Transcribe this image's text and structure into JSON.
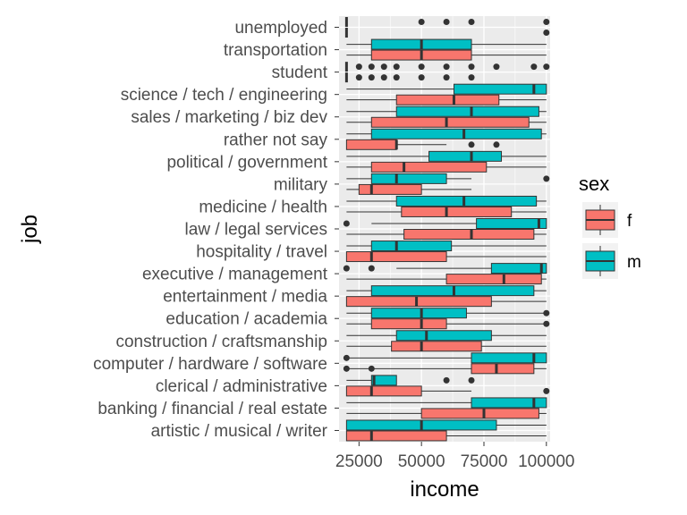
{
  "chart_data": {
    "type": "boxplot",
    "orientation": "horizontal",
    "xlabel": "income",
    "ylabel": "job",
    "xlim": [
      17000,
      101500
    ],
    "xticks": [
      25000,
      50000,
      75000,
      100000
    ],
    "xtick_labels": [
      "25000",
      "50000",
      "75000",
      "100000"
    ],
    "grid": true,
    "panel_background": "#ebebeb",
    "grid_color": "#ffffff",
    "legend": {
      "title": "sex",
      "placement": "right",
      "entries": [
        {
          "name": "f",
          "color": "#f8766d"
        },
        {
          "name": "m",
          "color": "#00bfc4"
        }
      ]
    },
    "series_colors": {
      "f": "#f8766d",
      "m": "#00bfc4"
    },
    "categories": [
      "artistic / musical / writer",
      "banking / financial / real estate",
      "clerical / administrative",
      "computer / hardware / software",
      "construction / craftsmanship",
      "education / academia",
      "entertainment / media",
      "executive / management",
      "hospitality / travel",
      "law / legal services",
      "medicine / health",
      "military",
      "political / government",
      "rather not say",
      "sales / marketing / biz dev",
      "science / tech / engineering",
      "student",
      "transportation",
      "unemployed"
    ],
    "boxes": [
      {
        "job": "artistic / musical / writer",
        "sex": "f",
        "min": 20000,
        "q1": 20000,
        "median": 30000,
        "q3": 60000,
        "max": 100000,
        "outliers": []
      },
      {
        "job": "artistic / musical / writer",
        "sex": "m",
        "min": 20000,
        "q1": 20000,
        "median": 50000,
        "q3": 80000,
        "max": 100000,
        "outliers": []
      },
      {
        "job": "banking / financial / real estate",
        "sex": "f",
        "min": 20000,
        "q1": 50000,
        "median": 75000,
        "q3": 97000,
        "max": 100000,
        "outliers": []
      },
      {
        "job": "banking / financial / real estate",
        "sex": "m",
        "min": 20000,
        "q1": 70000,
        "median": 95000,
        "q3": 100000,
        "max": 100000,
        "outliers": []
      },
      {
        "job": "clerical / administrative",
        "sex": "f",
        "min": 20000,
        "q1": 20000,
        "median": 30000,
        "q3": 50000,
        "max": 70000,
        "outliers": [
          100000
        ]
      },
      {
        "job": "clerical / administrative",
        "sex": "m",
        "min": 20000,
        "q1": 30000,
        "median": 31000,
        "q3": 40000,
        "max": 40000,
        "outliers": [
          60000,
          70000
        ]
      },
      {
        "job": "computer / hardware / software",
        "sex": "f",
        "min": 20000,
        "q1": 70000,
        "median": 80000,
        "q3": 95000,
        "max": 100000,
        "outliers": [
          20000,
          30000
        ]
      },
      {
        "job": "computer / hardware / software",
        "sex": "m",
        "min": 20000,
        "q1": 70000,
        "median": 95000,
        "q3": 100000,
        "max": 100000,
        "outliers": [
          20000
        ]
      },
      {
        "job": "construction / craftsmanship",
        "sex": "f",
        "min": 20000,
        "q1": 38000,
        "median": 50000,
        "q3": 74000,
        "max": 100000,
        "outliers": []
      },
      {
        "job": "construction / craftsmanship",
        "sex": "m",
        "min": 20000,
        "q1": 40000,
        "median": 52000,
        "q3": 78000,
        "max": 100000,
        "outliers": []
      },
      {
        "job": "education / academia",
        "sex": "f",
        "min": 20000,
        "q1": 30000,
        "median": 50000,
        "q3": 60000,
        "max": 100000,
        "outliers": [
          100000
        ]
      },
      {
        "job": "education / academia",
        "sex": "m",
        "min": 20000,
        "q1": 30000,
        "median": 50000,
        "q3": 68000,
        "max": 100000,
        "outliers": [
          100000
        ]
      },
      {
        "job": "entertainment / media",
        "sex": "f",
        "min": 20000,
        "q1": 20000,
        "median": 48000,
        "q3": 78000,
        "max": 100000,
        "outliers": []
      },
      {
        "job": "entertainment / media",
        "sex": "m",
        "min": 20000,
        "q1": 30000,
        "median": 63000,
        "q3": 95000,
        "max": 100000,
        "outliers": []
      },
      {
        "job": "executive / management",
        "sex": "f",
        "min": 20000,
        "q1": 60000,
        "median": 83000,
        "q3": 98000,
        "max": 100000,
        "outliers": []
      },
      {
        "job": "executive / management",
        "sex": "m",
        "min": 40000,
        "q1": 78000,
        "median": 98000,
        "q3": 100000,
        "max": 100000,
        "outliers": [
          20000,
          30000
        ]
      },
      {
        "job": "hospitality / travel",
        "sex": "f",
        "min": 20000,
        "q1": 20000,
        "median": 30000,
        "q3": 60000,
        "max": 100000,
        "outliers": []
      },
      {
        "job": "hospitality / travel",
        "sex": "m",
        "min": 20000,
        "q1": 30000,
        "median": 40000,
        "q3": 62000,
        "max": 100000,
        "outliers": []
      },
      {
        "job": "law / legal services",
        "sex": "f",
        "min": 20000,
        "q1": 43000,
        "median": 70000,
        "q3": 95000,
        "max": 100000,
        "outliers": []
      },
      {
        "job": "law / legal services",
        "sex": "m",
        "min": 30000,
        "q1": 72000,
        "median": 97000,
        "q3": 100000,
        "max": 100000,
        "outliers": [
          20000
        ]
      },
      {
        "job": "medicine / health",
        "sex": "f",
        "min": 20000,
        "q1": 42000,
        "median": 60000,
        "q3": 86000,
        "max": 100000,
        "outliers": []
      },
      {
        "job": "medicine / health",
        "sex": "m",
        "min": 20000,
        "q1": 40000,
        "median": 67000,
        "q3": 96000,
        "max": 100000,
        "outliers": []
      },
      {
        "job": "military",
        "sex": "f",
        "min": 20000,
        "q1": 25000,
        "median": 30000,
        "q3": 50000,
        "max": 70000,
        "outliers": []
      },
      {
        "job": "military",
        "sex": "m",
        "min": 20000,
        "q1": 30000,
        "median": 40000,
        "q3": 60000,
        "max": 70000,
        "outliers": [
          100000
        ]
      },
      {
        "job": "political / government",
        "sex": "f",
        "min": 20000,
        "q1": 30000,
        "median": 43000,
        "q3": 76000,
        "max": 100000,
        "outliers": []
      },
      {
        "job": "political / government",
        "sex": "m",
        "min": 20000,
        "q1": 53000,
        "median": 70000,
        "q3": 82000,
        "max": 100000,
        "outliers": []
      },
      {
        "job": "rather not say",
        "sex": "f",
        "min": 20000,
        "q1": 20000,
        "median": 40000,
        "q3": 40000,
        "max": 60000,
        "outliers": [
          70000,
          80000
        ]
      },
      {
        "job": "rather not say",
        "sex": "m",
        "min": 20000,
        "q1": 30000,
        "median": 67000,
        "q3": 98000,
        "max": 100000,
        "outliers": []
      },
      {
        "job": "sales / marketing / biz dev",
        "sex": "f",
        "min": 20000,
        "q1": 30000,
        "median": 60000,
        "q3": 93000,
        "max": 100000,
        "outliers": []
      },
      {
        "job": "sales / marketing / biz dev",
        "sex": "m",
        "min": 20000,
        "q1": 40000,
        "median": 70000,
        "q3": 97000,
        "max": 100000,
        "outliers": []
      },
      {
        "job": "science / tech / engineering",
        "sex": "f",
        "min": 20000,
        "q1": 40000,
        "median": 63000,
        "q3": 81000,
        "max": 100000,
        "outliers": []
      },
      {
        "job": "science / tech / engineering",
        "sex": "m",
        "min": 20000,
        "q1": 63000,
        "median": 95000,
        "q3": 100000,
        "max": 100000,
        "outliers": []
      },
      {
        "job": "student",
        "sex": "f",
        "min": 20000,
        "q1": 20000,
        "median": 20000,
        "q3": 20000,
        "max": 20000,
        "outliers": [
          25000,
          30000,
          35000,
          40000,
          50000,
          60000,
          70000
        ]
      },
      {
        "job": "student",
        "sex": "m",
        "min": 20000,
        "q1": 20000,
        "median": 20000,
        "q3": 20000,
        "max": 20000,
        "outliers": [
          25000,
          30000,
          35000,
          40000,
          50000,
          60000,
          70000,
          80000,
          95000,
          100000
        ]
      },
      {
        "job": "transportation",
        "sex": "f",
        "min": 20000,
        "q1": 30000,
        "median": 50000,
        "q3": 70000,
        "max": 100000,
        "outliers": []
      },
      {
        "job": "transportation",
        "sex": "m",
        "min": 20000,
        "q1": 30000,
        "median": 50000,
        "q3": 70000,
        "max": 100000,
        "outliers": []
      },
      {
        "job": "unemployed",
        "sex": "f",
        "min": 20000,
        "q1": 20000,
        "median": 20000,
        "q3": 20000,
        "max": 20000,
        "outliers": [
          100000
        ]
      },
      {
        "job": "unemployed",
        "sex": "m",
        "min": 20000,
        "q1": 20000,
        "median": 20000,
        "q3": 20000,
        "max": 20000,
        "outliers": [
          50000,
          60000,
          70000,
          100000
        ]
      }
    ]
  }
}
